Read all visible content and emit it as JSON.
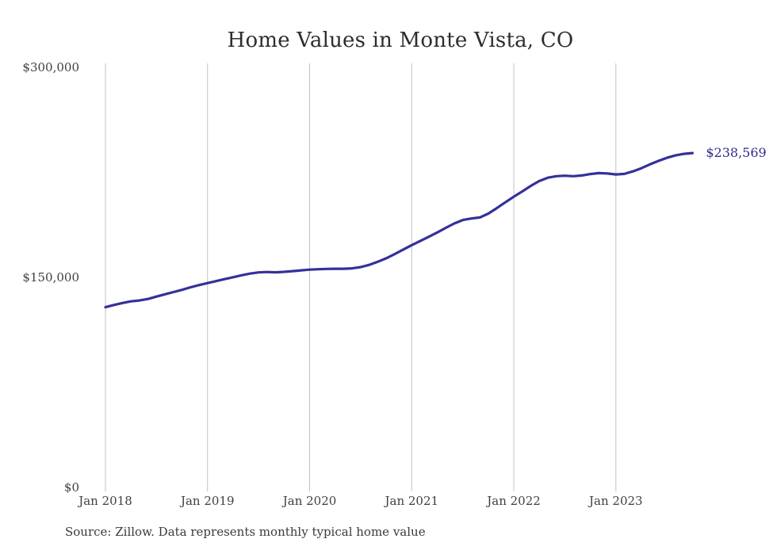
{
  "page": {
    "background": "#ffffff"
  },
  "source_note": "Source: Zillow. Data represents monthly typical home value",
  "chart_data": {
    "type": "line",
    "title": "Home Values in Monte Vista, CO",
    "series_name": "Monthly typical home value",
    "end_label": "$238,569",
    "ylim": [
      0,
      300000
    ],
    "grid": "vertical-only",
    "legend": "none",
    "line_color": "#34319a",
    "grid_color": "#c2c2c2",
    "end_label_color": "#2e2a90",
    "yticks": [
      {
        "value": 0,
        "label": "$0"
      },
      {
        "value": 150000,
        "label": "$150,000"
      },
      {
        "value": 300000,
        "label": "$300,000"
      }
    ],
    "xticks": [
      {
        "month_index": 0,
        "label": "Jan 2018"
      },
      {
        "month_index": 12,
        "label": "Jan 2019"
      },
      {
        "month_index": 24,
        "label": "Jan 2020"
      },
      {
        "month_index": 36,
        "label": "Jan 2021"
      },
      {
        "month_index": 48,
        "label": "Jan 2022"
      },
      {
        "month_index": 60,
        "label": "Jan 2023"
      }
    ],
    "x": [
      "2018-01",
      "2018-02",
      "2018-03",
      "2018-04",
      "2018-05",
      "2018-06",
      "2018-07",
      "2018-08",
      "2018-09",
      "2018-10",
      "2018-11",
      "2018-12",
      "2019-01",
      "2019-02",
      "2019-03",
      "2019-04",
      "2019-05",
      "2019-06",
      "2019-07",
      "2019-08",
      "2019-09",
      "2019-10",
      "2019-11",
      "2019-12",
      "2020-01",
      "2020-02",
      "2020-03",
      "2020-04",
      "2020-05",
      "2020-06",
      "2020-07",
      "2020-08",
      "2020-09",
      "2020-10",
      "2020-11",
      "2020-12",
      "2021-01",
      "2021-02",
      "2021-03",
      "2021-04",
      "2021-05",
      "2021-06",
      "2021-07",
      "2021-08",
      "2021-09",
      "2021-10",
      "2021-11",
      "2021-12",
      "2022-01",
      "2022-02",
      "2022-03",
      "2022-04",
      "2022-05",
      "2022-06",
      "2022-07",
      "2022-08",
      "2022-09",
      "2022-10",
      "2022-11",
      "2022-12",
      "2023-01",
      "2023-02",
      "2023-03",
      "2023-04",
      "2023-05",
      "2023-06",
      "2023-07",
      "2023-08",
      "2023-09",
      "2023-10"
    ],
    "values": [
      128600,
      130200,
      131600,
      132800,
      133400,
      134500,
      136200,
      137800,
      139400,
      141000,
      142800,
      144400,
      145800,
      147200,
      148600,
      150000,
      151400,
      152600,
      153400,
      153700,
      153500,
      153800,
      154300,
      154900,
      155400,
      155700,
      155900,
      156000,
      156000,
      156300,
      157200,
      158800,
      161000,
      163500,
      166500,
      169700,
      172900,
      175800,
      178800,
      181900,
      185200,
      188300,
      190800,
      191900,
      192600,
      195400,
      199300,
      203400,
      207400,
      211200,
      215200,
      218600,
      221000,
      222100,
      222400,
      222100,
      222600,
      223600,
      224300,
      224000,
      223300,
      223700,
      225500,
      227800,
      230500,
      233000,
      235200,
      236900,
      238000,
      238569
    ]
  }
}
